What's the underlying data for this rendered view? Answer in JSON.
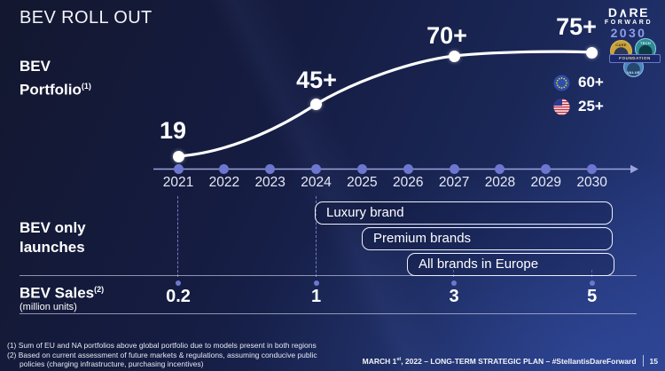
{
  "title": "BEV ROLL OUT",
  "logo": {
    "line1": "D∧RE",
    "line2": "FORWARD",
    "line3": "2030",
    "badges": {
      "care": "CARE",
      "tech": "TECH",
      "value": "VALUE",
      "ribbon": "FOUNDATION"
    }
  },
  "left_labels": {
    "portfolio": {
      "line1": "BEV",
      "line2": "Portfolio",
      "sup": "(1)"
    },
    "launches": {
      "line1": "BEV only",
      "line2": "launches"
    },
    "sales": {
      "text": "BEV Sales",
      "sup": "(2)",
      "unit": "(million units)"
    }
  },
  "legend": {
    "eu": {
      "icon": "eu-flag",
      "value": "60+"
    },
    "us": {
      "icon": "us-flag",
      "value": "25+"
    }
  },
  "launches": [
    {
      "label": "Luxury brand"
    },
    {
      "label": "Premium brands"
    },
    {
      "label": "All brands in Europe"
    }
  ],
  "chart_data": {
    "type": "line",
    "x": [
      2021,
      2022,
      2023,
      2024,
      2025,
      2026,
      2027,
      2028,
      2029,
      2030
    ],
    "series": [
      {
        "name": "BEV Portfolio",
        "points": [
          {
            "year": 2021,
            "value": 19,
            "label": "19"
          },
          {
            "year": 2024,
            "value": 45,
            "label": "45+"
          },
          {
            "year": 2027,
            "value": 70,
            "label": "70+"
          },
          {
            "year": 2030,
            "value": 75,
            "label": "75+"
          }
        ]
      }
    ],
    "sales_row": {
      "name": "BEV Sales (million units)",
      "points": [
        {
          "year": 2021,
          "value": "0.2"
        },
        {
          "year": 2024,
          "value": "1"
        },
        {
          "year": 2027,
          "value": "3"
        },
        {
          "year": 2030,
          "value": "5"
        }
      ]
    },
    "regional_split": {
      "EU": "60+",
      "NA": "25+"
    },
    "xlabel": "",
    "ylabel": "",
    "grid": false,
    "legend_position": "right"
  },
  "footnotes": {
    "line1": "(1)  Sum of EU and NA portfolios above global portfolio due to models present in both regions",
    "line2": "(2) Based on current assessment of future markets & regulations, assuming conducive public",
    "line3": "policies (charging infrastructure, purchasing incentives)"
  },
  "footer": {
    "date_prefix": "MARCH 1",
    "date_sup": "st",
    "rest": ", 2022 – LONG-TERM STRATEGIC PLAN – #StellantisDareForward",
    "page": "15"
  }
}
